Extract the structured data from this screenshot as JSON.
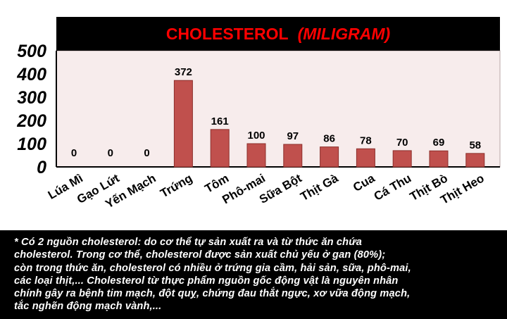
{
  "chart_data": {
    "type": "bar",
    "title": "CHOLESTEROL",
    "title_unit": "(MILIGRAM)",
    "categories": [
      "Lúa Mì",
      "Gạo Lứt",
      "Yến Mạch",
      "Trứng",
      "Tôm",
      "Phô-mai",
      "Sữa Bột",
      "Thịt Gà",
      "Cua",
      "Cá Thu",
      "Thịt Bò",
      "Thịt Heo"
    ],
    "values": [
      0,
      0,
      0,
      372,
      161,
      100,
      97,
      86,
      78,
      70,
      69,
      58
    ],
    "data_labels": [
      "0",
      "0",
      "0",
      "372",
      "161",
      "100",
      "97",
      "86",
      "78",
      "70",
      "69",
      "58"
    ],
    "yticks": [
      "0",
      "100",
      "200",
      "300",
      "400",
      "500"
    ],
    "ylim": [
      0,
      500
    ],
    "xlabel": "",
    "ylabel": "",
    "grid": false,
    "legend": "none",
    "colors": {
      "bar": "#c0504d",
      "bar_stroke": "#8c2f2c",
      "plot_bg": "#f7ecec",
      "title_bg": "#000000",
      "title_text": "#ff0000"
    }
  },
  "footnote": {
    "lines": [
      "* Có 2 nguồn cholesterol: do cơ thể tự sản xuất ra và từ thức ăn chứa",
      "cholesterol. Trong cơ thể, cholesterol được sản xuất chủ yếu ở gan (80%);",
      "còn trong thức ăn, cholesterol có nhiều ở trứng gia cầm, hải sản, sữa, phô-mai,",
      "các loại thịt,... Cholesterol từ thực phẩm nguồn gốc động vật là nguyên nhân",
      "chính gây ra bệnh tim mạch, đột  quỵ, chứng đau thắt ngực, xơ vữa động mạch,",
      "tắc nghẽn động mạch vành,..."
    ]
  }
}
